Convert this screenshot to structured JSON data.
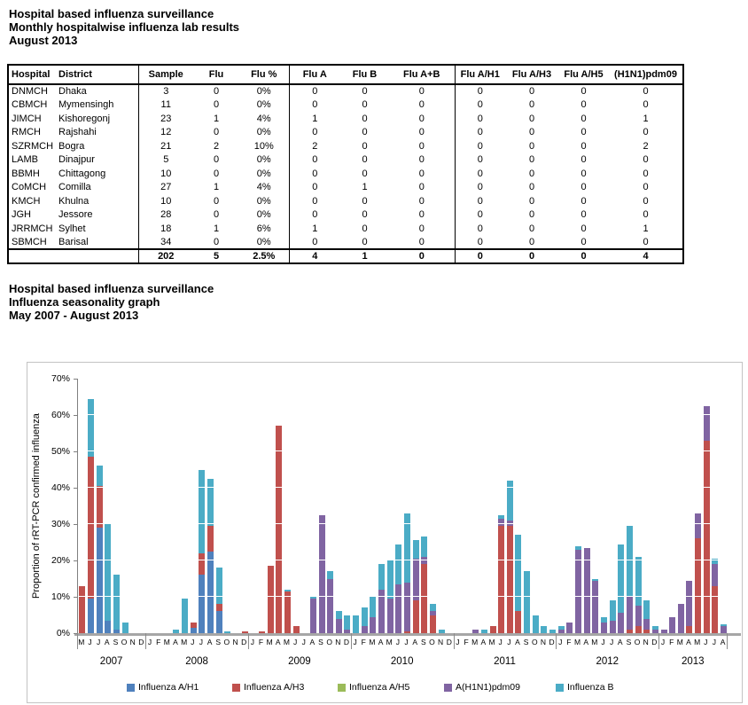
{
  "report": {
    "title_lines": [
      "Hospital based influenza surveillance",
      "Monthly hospitalwise influenza lab results",
      "August 2013"
    ],
    "table": {
      "columns": [
        "Hospital",
        "District",
        "Sample",
        "Flu",
        "Flu %",
        "Flu A",
        "Flu B",
        "Flu A+B",
        "Flu A/H1",
        "Flu A/H3",
        "Flu A/H5",
        "(H1N1)pdm09"
      ],
      "rows": [
        [
          "DNMCH",
          "Dhaka",
          "3",
          "0",
          "0%",
          "0",
          "0",
          "0",
          "0",
          "0",
          "0",
          "0"
        ],
        [
          "CBMCH",
          "Mymensingh",
          "11",
          "0",
          "0%",
          "0",
          "0",
          "0",
          "0",
          "0",
          "0",
          "0"
        ],
        [
          "JIMCH",
          "Kishoregonj",
          "23",
          "1",
          "4%",
          "1",
          "0",
          "0",
          "0",
          "0",
          "0",
          "1"
        ],
        [
          "RMCH",
          "Rajshahi",
          "12",
          "0",
          "0%",
          "0",
          "0",
          "0",
          "0",
          "0",
          "0",
          "0"
        ],
        [
          "SZRMCH",
          "Bogra",
          "21",
          "2",
          "10%",
          "2",
          "0",
          "0",
          "0",
          "0",
          "0",
          "2"
        ],
        [
          "LAMB",
          "Dinajpur",
          "5",
          "0",
          "0%",
          "0",
          "0",
          "0",
          "0",
          "0",
          "0",
          "0"
        ],
        [
          "BBMH",
          "Chittagong",
          "10",
          "0",
          "0%",
          "0",
          "0",
          "0",
          "0",
          "0",
          "0",
          "0"
        ],
        [
          "CoMCH",
          "Comilla",
          "27",
          "1",
          "4%",
          "0",
          "1",
          "0",
          "0",
          "0",
          "0",
          "0"
        ],
        [
          "KMCH",
          "Khulna",
          "10",
          "0",
          "0%",
          "0",
          "0",
          "0",
          "0",
          "0",
          "0",
          "0"
        ],
        [
          "JGH",
          "Jessore",
          "28",
          "0",
          "0%",
          "0",
          "0",
          "0",
          "0",
          "0",
          "0",
          "0"
        ],
        [
          "JRRMCH",
          "Sylhet",
          "18",
          "1",
          "6%",
          "1",
          "0",
          "0",
          "0",
          "0",
          "0",
          "1"
        ],
        [
          "SBMCH",
          "Barisal",
          "34",
          "0",
          "0%",
          "0",
          "0",
          "0",
          "0",
          "0",
          "0",
          "0"
        ]
      ],
      "totals": [
        "",
        "",
        "202",
        "5",
        "2.5%",
        "4",
        "1",
        "0",
        "0",
        "0",
        "0",
        "4"
      ]
    }
  },
  "graph_section": {
    "title_lines": [
      "Hospital based influenza surveillance",
      "Influenza seasonality graph",
      "May 2007 - August 2013"
    ]
  },
  "chart_data": {
    "type": "bar",
    "stacked": true,
    "title": "",
    "xlabel": "",
    "ylabel": "Proportion of rRT-PCR confirmed influenza",
    "ylim": [
      0,
      70
    ],
    "ytick_labels": [
      "0%",
      "10%",
      "20%",
      "30%",
      "40%",
      "50%",
      "60%",
      "70%"
    ],
    "grid": "white gridlines every 10%, visible only over bars",
    "legend_position": "bottom",
    "series_names": [
      "Influenza A/H1",
      "Influenza A/H3",
      "Influenza A/H5",
      "A(H1N1)pdm09",
      "Influenza B"
    ],
    "series_colors": [
      "#4F81BD",
      "#C0504D",
      "#9BBB59",
      "#8064A2",
      "#4BACC6"
    ],
    "value_order_note": "each month value array = [A/H1, A/H3, A/H5, A(H1N1)pdm09, B] in percent, stacked bottom to top",
    "years": [
      {
        "year": "2007",
        "months": [
          "M",
          "J",
          "J",
          "A",
          "S",
          "O",
          "N",
          "D"
        ],
        "values": [
          [
            0,
            13,
            0,
            0,
            0
          ],
          [
            9.5,
            39,
            0,
            0,
            16
          ],
          [
            29,
            11.5,
            0,
            0,
            5.5
          ],
          [
            3.5,
            0,
            0,
            0,
            26.5
          ],
          [
            1,
            0,
            0,
            0,
            15
          ],
          [
            0,
            0,
            0,
            0,
            3
          ],
          [
            0,
            0,
            0,
            0,
            0
          ],
          [
            0,
            0,
            0,
            0,
            0
          ]
        ]
      },
      {
        "year": "2008",
        "months": [
          "J",
          "F",
          "M",
          "A",
          "M",
          "J",
          "J",
          "A",
          "S",
          "O",
          "N",
          "D"
        ],
        "values": [
          [
            0,
            0,
            0,
            0,
            0
          ],
          [
            0,
            0,
            0,
            0,
            0
          ],
          [
            0,
            0,
            0,
            0,
            0
          ],
          [
            0,
            0,
            0,
            0,
            1
          ],
          [
            0,
            0,
            0,
            0,
            9.5
          ],
          [
            1.5,
            1.5,
            0,
            0,
            0
          ],
          [
            16,
            6,
            0,
            0,
            23
          ],
          [
            22.5,
            7,
            0,
            0,
            13
          ],
          [
            6,
            2,
            0,
            0,
            10
          ],
          [
            0,
            0,
            0,
            0,
            0.5
          ],
          [
            0,
            0,
            0,
            0,
            0
          ],
          [
            0,
            0.5,
            0,
            0,
            0
          ]
        ]
      },
      {
        "year": "2009",
        "months": [
          "J",
          "F",
          "M",
          "A",
          "M",
          "J",
          "J",
          "A",
          "S",
          "O",
          "N",
          "D"
        ],
        "values": [
          [
            0,
            0,
            0,
            0,
            0
          ],
          [
            0,
            0.5,
            0,
            0,
            0
          ],
          [
            0,
            18.5,
            0,
            0,
            0
          ],
          [
            0,
            57,
            0,
            0,
            0
          ],
          [
            0,
            11.5,
            0,
            0,
            0.5
          ],
          [
            0,
            2,
            0,
            0,
            0
          ],
          [
            0,
            0,
            0,
            0,
            0
          ],
          [
            0,
            0,
            0,
            9.5,
            0.5
          ],
          [
            0,
            0,
            0,
            32.5,
            0
          ],
          [
            0,
            0,
            0,
            15,
            2
          ],
          [
            0,
            0,
            0,
            4,
            2
          ],
          [
            0,
            0,
            0,
            1,
            4
          ]
        ]
      },
      {
        "year": "2010",
        "months": [
          "J",
          "F",
          "M",
          "A",
          "M",
          "J",
          "J",
          "A",
          "S",
          "O",
          "N",
          "D"
        ],
        "values": [
          [
            0,
            0,
            0,
            0,
            5
          ],
          [
            0,
            0,
            0,
            2,
            5
          ],
          [
            0,
            0,
            0,
            4.5,
            5.5
          ],
          [
            0,
            0,
            0,
            12,
            7
          ],
          [
            0,
            0,
            0,
            9.5,
            10.5
          ],
          [
            0,
            0,
            0,
            13.5,
            11
          ],
          [
            0,
            0.5,
            0,
            13.5,
            19
          ],
          [
            0,
            9,
            0,
            11.5,
            5
          ],
          [
            0,
            19,
            0,
            2,
            5.5
          ],
          [
            0,
            5,
            0,
            1,
            2
          ],
          [
            0,
            0,
            0,
            0,
            1
          ],
          [
            0,
            0,
            0,
            0,
            0
          ]
        ]
      },
      {
        "year": "2011",
        "months": [
          "J",
          "F",
          "M",
          "A",
          "M",
          "J",
          "J",
          "A",
          "S",
          "O",
          "N",
          "D"
        ],
        "values": [
          [
            0,
            0,
            0,
            0,
            0
          ],
          [
            0,
            0,
            0,
            0,
            0
          ],
          [
            0,
            0,
            0,
            1,
            0
          ],
          [
            0,
            0,
            0,
            0,
            1
          ],
          [
            0,
            2,
            0,
            0,
            0
          ],
          [
            0,
            29.5,
            0,
            2,
            1
          ],
          [
            0,
            29.5,
            0,
            1.5,
            11
          ],
          [
            0,
            6,
            0,
            0,
            21
          ],
          [
            0,
            0,
            0,
            0,
            17
          ],
          [
            0,
            0,
            0,
            0,
            5
          ],
          [
            0,
            0,
            0,
            0,
            2
          ],
          [
            0,
            0,
            0,
            0,
            1
          ]
        ]
      },
      {
        "year": "2012",
        "months": [
          "J",
          "F",
          "M",
          "A",
          "M",
          "J",
          "J",
          "A",
          "S",
          "O",
          "N",
          "D"
        ],
        "values": [
          [
            0,
            0,
            0,
            1,
            1
          ],
          [
            0,
            0,
            0,
            3,
            0
          ],
          [
            0,
            0,
            0,
            23,
            1
          ],
          [
            0,
            0,
            0,
            23.5,
            0
          ],
          [
            0,
            0,
            0,
            14.5,
            0.5
          ],
          [
            0,
            0,
            0,
            3,
            1.5
          ],
          [
            0,
            0,
            0,
            3.5,
            5.5
          ],
          [
            0,
            0,
            0,
            5.5,
            19
          ],
          [
            0,
            1,
            0,
            9,
            19.5
          ],
          [
            0,
            2,
            0,
            5.5,
            13.5
          ],
          [
            0,
            1,
            0,
            3,
            5
          ],
          [
            0,
            0,
            0,
            1,
            1
          ]
        ]
      },
      {
        "year": "2013",
        "months": [
          "J",
          "F",
          "M",
          "A",
          "M",
          "J",
          "J",
          "A"
        ],
        "values": [
          [
            0,
            0,
            0,
            1,
            0
          ],
          [
            0,
            0,
            0,
            4.5,
            0
          ],
          [
            0,
            0,
            0,
            8,
            0
          ],
          [
            0,
            2,
            0,
            12.5,
            0
          ],
          [
            0,
            26,
            0,
            7,
            0
          ],
          [
            0,
            53,
            0,
            9.5,
            0
          ],
          [
            0,
            13,
            0,
            6,
            1.5
          ],
          [
            0,
            0,
            0,
            2,
            0.5
          ]
        ]
      }
    ]
  }
}
